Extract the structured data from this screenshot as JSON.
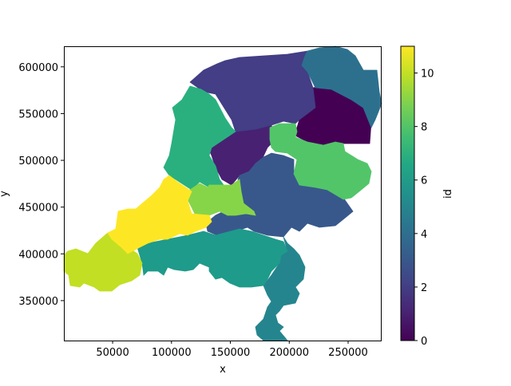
{
  "chart_data": {
    "type": "choropleth",
    "xlabel": "x",
    "ylabel": "y",
    "xlim": [
      8600,
      277800
    ],
    "ylim": [
      307300,
      622000
    ],
    "xticks": [
      "50000",
      "100000",
      "150000",
      "200000",
      "250000"
    ],
    "xtick_values": [
      50000,
      100000,
      150000,
      200000,
      250000
    ],
    "yticks": [
      "350000",
      "400000",
      "450000",
      "500000",
      "550000",
      "600000"
    ],
    "ytick_values": [
      350000,
      400000,
      450000,
      500000,
      550000,
      600000
    ],
    "grid": false,
    "colormap": "viridis",
    "colorbar": {
      "label": "id",
      "range": [
        0,
        11
      ],
      "ticks": [
        "0",
        "2",
        "4",
        "6",
        "8",
        "10"
      ],
      "tick_values": [
        0,
        2,
        4,
        6,
        8,
        10
      ]
    },
    "regions": [
      {
        "id": 0,
        "color": "#440154"
      },
      {
        "id": 1,
        "color": "#482173"
      },
      {
        "id": 2,
        "color": "#433e85"
      },
      {
        "id": 3,
        "color": "#38588c"
      },
      {
        "id": 4,
        "color": "#2d708e"
      },
      {
        "id": 5,
        "color": "#25858e"
      },
      {
        "id": 6,
        "color": "#1e9b8a"
      },
      {
        "id": 7,
        "color": "#2ab07f"
      },
      {
        "id": 8,
        "color": "#52c569"
      },
      {
        "id": 9,
        "color": "#86d549"
      },
      {
        "id": 10,
        "color": "#c2df23"
      },
      {
        "id": 11,
        "color": "#fde725"
      }
    ]
  }
}
